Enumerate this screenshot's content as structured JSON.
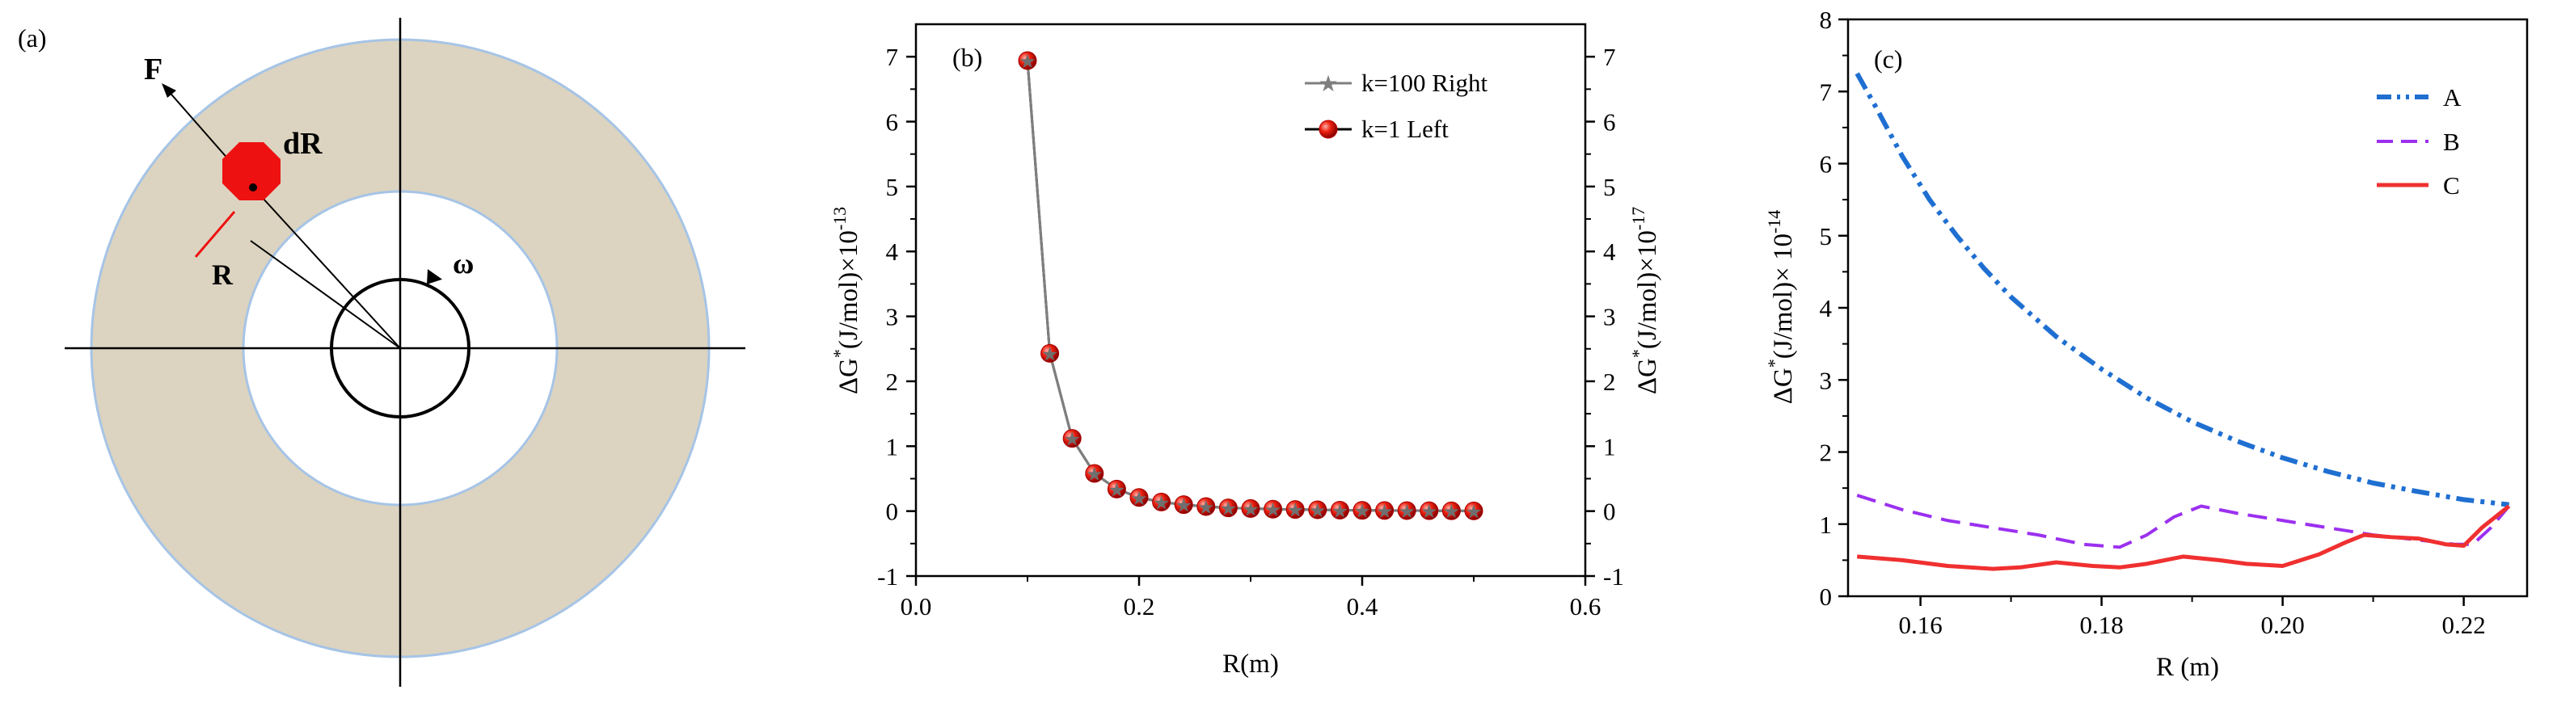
{
  "figure": {
    "panel_a": {
      "label": "(a)",
      "force_label": "F",
      "element_label": "dR",
      "radius_label": "R",
      "omega_label": "ω"
    }
  },
  "chart_data": [
    {
      "panel": "(b)",
      "type": "line",
      "xlabel": "R(m)",
      "ylabel_left": {
        "main": "ΔG",
        "sup1": "*",
        "mid": "(J/mol)×10",
        "sup2": "-13"
      },
      "ylabel_right": {
        "main": "ΔG",
        "sup1": "*",
        "mid": "(J/mol)×10",
        "sup2": "-17"
      },
      "xlim": [
        0.0,
        0.6
      ],
      "ylim": [
        -1,
        7.5
      ],
      "xticks": [
        0.0,
        0.2,
        0.4,
        0.6
      ],
      "xtick_labels": [
        "0.0",
        "0.2",
        "0.4",
        "0.6"
      ],
      "yticks": [
        -1,
        0,
        1,
        2,
        3,
        4,
        5,
        6,
        7
      ],
      "ytick_labels": [
        "-1",
        "0",
        "1",
        "2",
        "3",
        "4",
        "5",
        "6",
        "7"
      ],
      "legend_position": "top-right",
      "x": [
        0.1,
        0.12,
        0.14,
        0.16,
        0.18,
        0.2,
        0.22,
        0.24,
        0.26,
        0.28,
        0.3,
        0.32,
        0.34,
        0.36,
        0.38,
        0.4,
        0.42,
        0.44,
        0.46,
        0.48,
        0.5
      ],
      "series": [
        {
          "name": "k=100 Right",
          "axis": "right",
          "color": "#7f7f7f",
          "marker": "star",
          "values": [
            6.94,
            2.43,
            1.12,
            0.58,
            0.34,
            0.21,
            0.14,
            0.1,
            0.07,
            0.05,
            0.04,
            0.03,
            0.025,
            0.02,
            0.015,
            0.012,
            0.01,
            0.008,
            0.006,
            0.005,
            0.004
          ]
        },
        {
          "name": "k=1 Left",
          "axis": "left",
          "color": "#e8160f",
          "line_color": "#000000",
          "marker": "sphere",
          "values": [
            6.94,
            2.43,
            1.12,
            0.58,
            0.34,
            0.21,
            0.14,
            0.1,
            0.07,
            0.05,
            0.04,
            0.03,
            0.025,
            0.02,
            0.015,
            0.012,
            0.01,
            0.008,
            0.006,
            0.005,
            0.004
          ]
        }
      ]
    },
    {
      "panel": "(c)",
      "type": "line",
      "xlabel": "R (m)",
      "ylabel": {
        "main": "ΔG",
        "sup1": "*",
        "mid": "(J/mol)× 10",
        "sup2": "-14"
      },
      "xlim": [
        0.152,
        0.227
      ],
      "ylim": [
        0,
        8
      ],
      "xticks": [
        0.16,
        0.18,
        0.2,
        0.22
      ],
      "xtick_labels": [
        "0.16",
        "0.18",
        "0.20",
        "0.22"
      ],
      "yticks": [
        0,
        1,
        2,
        3,
        4,
        5,
        6,
        7,
        8
      ],
      "ytick_labels": [
        "0",
        "1",
        "2",
        "3",
        "4",
        "5",
        "6",
        "7",
        "8"
      ],
      "legend_position": "top-right",
      "series": [
        {
          "name": "A",
          "color": "#1f6fd1",
          "dash": "dash-dot-dot",
          "x": [
            0.153,
            0.155,
            0.158,
            0.161,
            0.164,
            0.167,
            0.17,
            0.175,
            0.18,
            0.185,
            0.19,
            0.195,
            0.2,
            0.205,
            0.21,
            0.215,
            0.22,
            0.225
          ],
          "y": [
            7.25,
            6.8,
            6.1,
            5.5,
            5.0,
            4.55,
            4.15,
            3.6,
            3.15,
            2.75,
            2.42,
            2.15,
            1.92,
            1.73,
            1.57,
            1.45,
            1.34,
            1.27
          ]
        },
        {
          "name": "B",
          "color": "#9b30f0",
          "dash": "dash",
          "x": [
            0.153,
            0.158,
            0.163,
            0.168,
            0.173,
            0.178,
            0.182,
            0.185,
            0.188,
            0.191,
            0.195,
            0.2,
            0.205,
            0.21,
            0.215,
            0.219,
            0.221,
            0.223,
            0.225
          ],
          "y": [
            1.4,
            1.2,
            1.05,
            0.95,
            0.85,
            0.72,
            0.68,
            0.85,
            1.1,
            1.25,
            1.15,
            1.05,
            0.95,
            0.85,
            0.78,
            0.72,
            0.72,
            0.95,
            1.25
          ]
        },
        {
          "name": "C",
          "color": "#f03030",
          "dash": "solid",
          "x": [
            0.153,
            0.158,
            0.163,
            0.168,
            0.171,
            0.175,
            0.179,
            0.182,
            0.185,
            0.189,
            0.193,
            0.196,
            0.2,
            0.204,
            0.207,
            0.209,
            0.212,
            0.215,
            0.218,
            0.22,
            0.222,
            0.225
          ],
          "y": [
            0.55,
            0.5,
            0.42,
            0.38,
            0.4,
            0.47,
            0.42,
            0.4,
            0.45,
            0.55,
            0.5,
            0.45,
            0.42,
            0.58,
            0.75,
            0.85,
            0.82,
            0.8,
            0.72,
            0.7,
            0.95,
            1.25
          ]
        }
      ]
    }
  ]
}
